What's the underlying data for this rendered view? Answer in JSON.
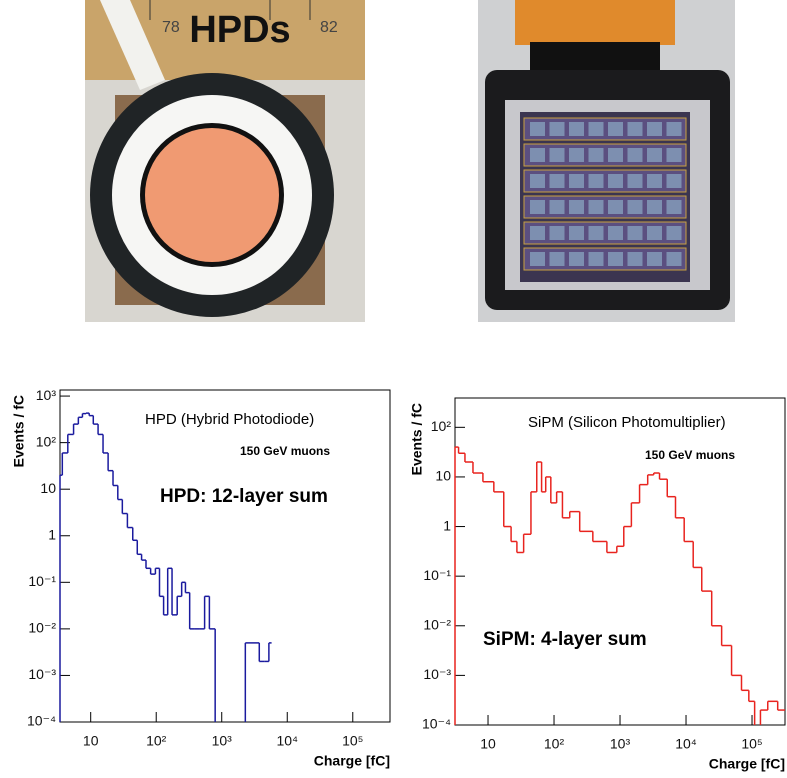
{
  "photos": {
    "left_label": "HPDs",
    "ruler_labels": [
      "78",
      "82"
    ]
  },
  "chart_data": [
    {
      "type": "line",
      "step": true,
      "log_x": true,
      "log_y": true,
      "color": "#1a1a9e",
      "title": "HPD (Hybrid Photodiode)",
      "subtitle": "150 GeV muons",
      "annotation": "HPD: 12-layer sum",
      "xlabel": "Charge [fC]",
      "ylabel": "Events / fC",
      "xlim": [
        3.4,
        370000
      ],
      "ylim": [
        0.0001,
        1350
      ],
      "xticks": [
        10,
        {
          "value": 100,
          "label": "10²"
        },
        {
          "value": 1000,
          "label": "10³"
        },
        {
          "value": 10000,
          "label": "10⁴"
        },
        {
          "value": 100000,
          "label": "10⁵"
        }
      ],
      "yticks": [
        {
          "value": 0.0001,
          "label": "10⁻⁴"
        },
        {
          "value": 0.001,
          "label": "10⁻³"
        },
        {
          "value": 0.01,
          "label": "10⁻²"
        },
        {
          "value": 0.1,
          "label": "10⁻¹"
        },
        1,
        10,
        {
          "value": 100,
          "label": "10²"
        },
        {
          "value": 1000,
          "label": "10³"
        }
      ],
      "x": [
        3.4,
        4,
        5,
        6,
        7,
        8,
        9,
        10,
        12,
        14,
        17,
        20,
        24,
        28,
        33,
        40,
        48,
        55,
        65,
        75,
        90,
        105,
        120,
        140,
        160,
        190,
        230,
        260,
        300,
        350,
        420,
        500,
        600,
        700,
        900,
        1500,
        3500,
        4000,
        5000,
        5500
      ],
      "values": [
        20,
        60,
        150,
        250,
        350,
        420,
        430,
        380,
        250,
        150,
        60,
        25,
        12,
        6,
        3,
        1.5,
        0.8,
        0.4,
        0.3,
        0.2,
        0.15,
        0.2,
        0.05,
        0.02,
        0.2,
        0.02,
        0.05,
        0.1,
        0.06,
        0.01,
        0.01,
        0.01,
        0.05,
        0.01,
        null,
        null,
        0.005,
        0.002,
        0.002,
        0.005
      ]
    },
    {
      "type": "line",
      "step": true,
      "log_x": true,
      "log_y": true,
      "color": "#e8231e",
      "title": "SiPM (Silicon Photomultiplier)",
      "subtitle": "150 GeV muons",
      "annotation": "SiPM: 4-layer sum",
      "xlabel": "Charge [fC]",
      "ylabel": "Events / fC",
      "xlim": [
        3.16,
        316000
      ],
      "ylim": [
        0.0001,
        390
      ],
      "xticks": [
        10,
        {
          "value": 100,
          "label": "10²"
        },
        {
          "value": 1000,
          "label": "10³"
        },
        {
          "value": 10000,
          "label": "10⁴"
        },
        {
          "value": 100000,
          "label": "10⁵"
        }
      ],
      "yticks": [
        {
          "value": 0.0001,
          "label": "10⁻⁴"
        },
        {
          "value": 0.001,
          "label": "10⁻³"
        },
        {
          "value": 0.01,
          "label": "10⁻²"
        },
        {
          "value": 0.1,
          "label": "10⁻¹"
        },
        1,
        10,
        {
          "value": 100,
          "label": "10²"
        }
      ],
      "x": [
        3.2,
        4,
        5,
        7,
        10,
        15,
        20,
        25,
        30,
        40,
        50,
        60,
        70,
        80,
        100,
        120,
        150,
        200,
        300,
        500,
        800,
        1000,
        1300,
        1700,
        2300,
        3000,
        3500,
        4500,
        6000,
        8000,
        11000,
        15000,
        20000,
        30000,
        40000,
        60000,
        80000,
        100000,
        120000,
        150000,
        200000,
        300000
      ],
      "values": [
        40,
        30,
        20,
        12,
        8,
        5,
        1,
        0.5,
        0.3,
        0.7,
        5,
        20,
        5,
        10,
        3,
        5,
        1.5,
        2,
        0.8,
        0.5,
        0.3,
        0.4,
        1,
        3,
        7,
        11,
        12,
        9,
        4,
        1.5,
        0.5,
        0.15,
        0.05,
        0.01,
        0.004,
        0.001,
        0.0005,
        0.0003,
        null,
        0.0002,
        0.0003,
        0.0002
      ]
    }
  ]
}
